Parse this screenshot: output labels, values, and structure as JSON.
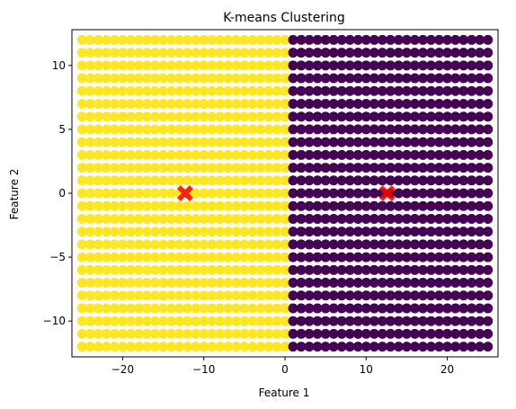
{
  "chart_data": {
    "type": "scatter",
    "title": "K-means Clustering",
    "xlabel": "Feature 1",
    "ylabel": "Feature 2",
    "xlim": [
      -26.25,
      26.25
    ],
    "ylim": [
      -12.8,
      12.8
    ],
    "xticks": [
      -20,
      -10,
      0,
      10,
      20
    ],
    "yticks": [
      -10,
      -5,
      0,
      5,
      10
    ],
    "xtick_labels": [
      "−20",
      "−10",
      "0",
      "10",
      "20"
    ],
    "ytick_labels": [
      "−10",
      "−5",
      "0",
      "5",
      "10"
    ],
    "grid": false,
    "legend": "none",
    "grid_points": {
      "x_start": -25,
      "x_end": 25,
      "x_step": 1.0,
      "y_start": -12,
      "y_end": 12,
      "y_step": 1.0
    },
    "series": [
      {
        "cluster": 0,
        "color": "#440154",
        "x_range": [
          0.5,
          25
        ]
      },
      {
        "cluster": 1,
        "color": "#fde725",
        "x_range": [
          -25,
          0.5
        ]
      }
    ],
    "centroids": {
      "color": "#ff0000",
      "marker": "X",
      "points": [
        {
          "x": -12.3,
          "y": 0
        },
        {
          "x": 12.6,
          "y": 0
        }
      ]
    }
  }
}
